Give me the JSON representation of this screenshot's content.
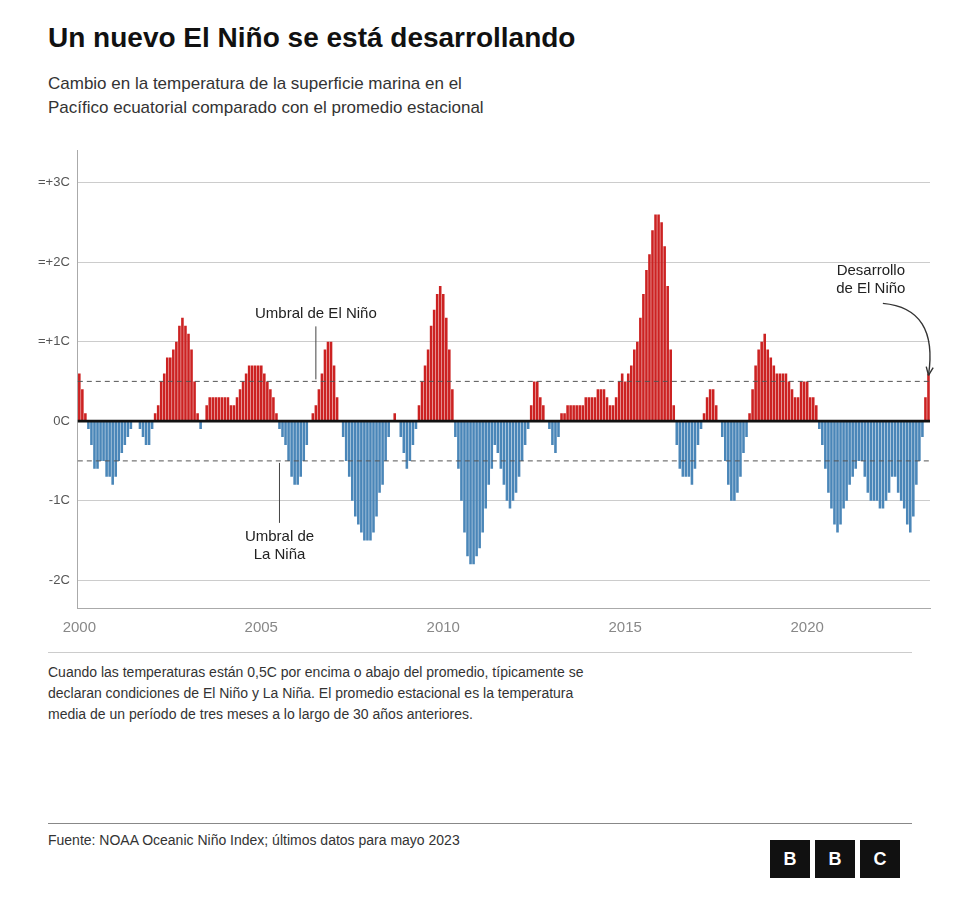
{
  "chart_data": {
    "type": "bar",
    "title": "Un nuevo El Niño se está desarrollando",
    "subtitle": "Cambio en la temperatura de la superficie marina en el\nPacífico ecuatorial comparado con el promedio estacional",
    "footnote": "Cuando las temperaturas están 0,5C por encima o abajo del promedio, típicamente se\ndeclaran condiciones de El Niño y La Niña. El promedio estacional es la temperatura\nmedia de un período de tres meses a lo largo de 30 años anteriores.",
    "source": "Fuente: NOAA Oceanic Niño Index; últimos datos para mayo 2023",
    "logo": "BBC",
    "annotations": [
      "Umbral de El Niño",
      "Umbral de\nLa Niña",
      "Desarrollo\nde El Niño"
    ],
    "reference_lines": [
      0.5,
      -0.5
    ],
    "ylim": [
      -2.35,
      3.4
    ],
    "yticks": [
      {
        "value": -2,
        "label": "-2C"
      },
      {
        "value": -1,
        "label": "-1C"
      },
      {
        "value": 0,
        "label": "0C"
      },
      {
        "value": 1,
        "label": "=+1C"
      },
      {
        "value": 2,
        "label": "=+2C"
      },
      {
        "value": 3,
        "label": "=+3C"
      }
    ],
    "grid": true,
    "categories": [
      "2000",
      null,
      null,
      null,
      null,
      null,
      null,
      null,
      null,
      null,
      null,
      null,
      null,
      null,
      null,
      null,
      null,
      null,
      null,
      null,
      null,
      null,
      null,
      null,
      null,
      null,
      null,
      null,
      null,
      null,
      null,
      null,
      null,
      null,
      null,
      null,
      null,
      null,
      null,
      null,
      null,
      null,
      null,
      null,
      null,
      null,
      null,
      null,
      null,
      null,
      null,
      null,
      null,
      null,
      null,
      null,
      null,
      null,
      null,
      null,
      "2005",
      null,
      null,
      null,
      null,
      null,
      null,
      null,
      null,
      null,
      null,
      null,
      null,
      null,
      null,
      null,
      null,
      null,
      null,
      null,
      null,
      null,
      null,
      null,
      null,
      null,
      null,
      null,
      null,
      null,
      null,
      null,
      null,
      null,
      null,
      null,
      null,
      null,
      null,
      null,
      null,
      null,
      null,
      null,
      null,
      null,
      null,
      null,
      null,
      null,
      null,
      null,
      null,
      null,
      null,
      null,
      null,
      null,
      null,
      null,
      "2010",
      null,
      null,
      null,
      null,
      null,
      null,
      null,
      null,
      null,
      null,
      null,
      null,
      null,
      null,
      null,
      null,
      null,
      null,
      null,
      null,
      null,
      null,
      null,
      null,
      null,
      null,
      null,
      null,
      null,
      null,
      null,
      null,
      null,
      null,
      null,
      null,
      null,
      null,
      null,
      null,
      null,
      null,
      null,
      null,
      null,
      null,
      null,
      null,
      null,
      null,
      null,
      null,
      null,
      null,
      null,
      null,
      null,
      null,
      null,
      "2015",
      null,
      null,
      null,
      null,
      null,
      null,
      null,
      null,
      null,
      null,
      null,
      null,
      null,
      null,
      null,
      null,
      null,
      null,
      null,
      null,
      null,
      null,
      null,
      null,
      null,
      null,
      null,
      null,
      null,
      null,
      null,
      null,
      null,
      null,
      null,
      null,
      null,
      null,
      null,
      null,
      null,
      null,
      null,
      null,
      null,
      null,
      null,
      null,
      null,
      null,
      null,
      null,
      null,
      null,
      null,
      null,
      null,
      null,
      null,
      "2020",
      null,
      null,
      null,
      null,
      null,
      null,
      null,
      null,
      null,
      null,
      null,
      null,
      null,
      null,
      null,
      null,
      null,
      null,
      null,
      null,
      null,
      null,
      null,
      null,
      null,
      null,
      null,
      null,
      null,
      null,
      null,
      null,
      null,
      null,
      null,
      null,
      null,
      null,
      null,
      null
    ],
    "values": [
      0.6,
      0.4,
      0.1,
      -0.1,
      -0.3,
      -0.6,
      -0.6,
      -0.5,
      -0.5,
      -0.7,
      -0.7,
      -0.8,
      -0.7,
      -0.5,
      -0.4,
      -0.3,
      -0.2,
      -0.1,
      0.0,
      0.0,
      -0.1,
      -0.2,
      -0.3,
      -0.3,
      -0.1,
      0.1,
      0.2,
      0.5,
      0.6,
      0.8,
      0.8,
      0.9,
      1.0,
      1.2,
      1.3,
      1.2,
      1.1,
      0.9,
      0.5,
      0.1,
      -0.1,
      0.0,
      0.2,
      0.3,
      0.3,
      0.3,
      0.3,
      0.3,
      0.3,
      0.3,
      0.2,
      0.2,
      0.3,
      0.4,
      0.5,
      0.6,
      0.7,
      0.7,
      0.7,
      0.7,
      0.7,
      0.6,
      0.5,
      0.4,
      0.3,
      0.1,
      -0.1,
      -0.2,
      -0.3,
      -0.5,
      -0.7,
      -0.8,
      -0.8,
      -0.7,
      -0.5,
      -0.3,
      0.0,
      0.1,
      0.2,
      0.4,
      0.6,
      0.9,
      1.0,
      1.0,
      0.7,
      0.3,
      0.0,
      -0.2,
      -0.5,
      -0.7,
      -1.0,
      -1.2,
      -1.3,
      -1.4,
      -1.5,
      -1.5,
      -1.5,
      -1.4,
      -1.2,
      -0.9,
      -0.8,
      -0.5,
      -0.2,
      0.0,
      0.1,
      0.0,
      -0.2,
      -0.4,
      -0.6,
      -0.5,
      -0.3,
      -0.1,
      0.2,
      0.5,
      0.7,
      0.9,
      1.2,
      1.4,
      1.6,
      1.7,
      1.6,
      1.3,
      0.9,
      0.4,
      -0.2,
      -0.6,
      -1.0,
      -1.4,
      -1.7,
      -1.8,
      -1.8,
      -1.7,
      -1.6,
      -1.4,
      -1.1,
      -0.8,
      -0.6,
      -0.3,
      -0.4,
      -0.6,
      -0.8,
      -1.0,
      -1.1,
      -1.0,
      -0.9,
      -0.7,
      -0.5,
      -0.3,
      -0.1,
      0.2,
      0.5,
      0.5,
      0.3,
      0.2,
      0.0,
      -0.1,
      -0.3,
      -0.4,
      -0.2,
      0.1,
      0.1,
      0.2,
      0.2,
      0.2,
      0.2,
      0.2,
      0.2,
      0.3,
      0.3,
      0.3,
      0.3,
      0.4,
      0.4,
      0.4,
      0.3,
      0.2,
      0.2,
      0.3,
      0.5,
      0.6,
      0.5,
      0.6,
      0.7,
      0.9,
      1.0,
      1.3,
      1.6,
      1.9,
      2.1,
      2.4,
      2.6,
      2.6,
      2.5,
      2.2,
      1.7,
      0.9,
      0.2,
      -0.3,
      -0.6,
      -0.7,
      -0.7,
      -0.7,
      -0.8,
      -0.6,
      -0.3,
      -0.1,
      0.1,
      0.3,
      0.4,
      0.4,
      0.2,
      0.0,
      -0.2,
      -0.5,
      -0.8,
      -1.0,
      -1.0,
      -0.9,
      -0.7,
      -0.4,
      -0.2,
      0.1,
      0.4,
      0.7,
      0.9,
      1.0,
      1.1,
      0.9,
      0.8,
      0.7,
      0.6,
      0.6,
      0.6,
      0.6,
      0.5,
      0.4,
      0.3,
      0.3,
      0.5,
      0.5,
      0.5,
      0.3,
      0.3,
      0.2,
      -0.1,
      -0.3,
      -0.6,
      -0.9,
      -1.1,
      -1.3,
      -1.4,
      -1.3,
      -1.1,
      -1.0,
      -0.8,
      -0.7,
      -0.6,
      -0.5,
      -0.5,
      -0.7,
      -0.9,
      -1.0,
      -1.0,
      -1.0,
      -1.1,
      -1.1,
      -1.0,
      -0.9,
      -0.7,
      -0.7,
      -0.9,
      -1.0,
      -1.1,
      -1.3,
      -1.4,
      -1.2,
      -0.8,
      -0.5,
      -0.2,
      0.3,
      0.6
    ],
    "colors": [
      "#cc2222",
      "#cc2222",
      "#cc2222",
      "#4a86b8",
      "#4a86b8",
      "#4a86b8",
      "#4a86b8",
      "#4a86b8",
      "#4a86b8",
      "#4a86b8",
      "#4a86b8",
      "#4a86b8",
      "#4a86b8",
      "#4a86b8",
      "#4a86b8",
      "#4a86b8",
      "#4a86b8",
      "#4a86b8",
      "#cc2222",
      "#cc2222",
      "#4a86b8",
      "#4a86b8",
      "#4a86b8",
      "#4a86b8",
      "#4a86b8",
      "#cc2222",
      "#cc2222",
      "#cc2222",
      "#cc2222",
      "#cc2222",
      "#cc2222",
      "#cc2222",
      "#cc2222",
      "#cc2222",
      "#cc2222",
      "#cc2222",
      "#cc2222",
      "#cc2222",
      "#cc2222",
      "#cc2222",
      "#4a86b8",
      "#cc2222",
      "#cc2222",
      "#cc2222",
      "#cc2222",
      "#cc2222",
      "#cc2222",
      "#cc2222",
      "#cc2222",
      "#cc2222",
      "#cc2222",
      "#cc2222",
      "#cc2222",
      "#cc2222",
      "#cc2222",
      "#cc2222",
      "#cc2222",
      "#cc2222",
      "#cc2222",
      "#cc2222",
      "#cc2222",
      "#cc2222",
      "#cc2222",
      "#cc2222",
      "#cc2222",
      "#cc2222",
      "#4a86b8",
      "#4a86b8",
      "#4a86b8",
      "#4a86b8",
      "#4a86b8",
      "#4a86b8",
      "#4a86b8",
      "#4a86b8",
      "#4a86b8",
      "#4a86b8",
      "#cc2222",
      "#cc2222",
      "#cc2222",
      "#cc2222",
      "#cc2222",
      "#cc2222",
      "#cc2222",
      "#cc2222",
      "#cc2222",
      "#cc2222",
      "#cc2222",
      "#4a86b8",
      "#4a86b8",
      "#4a86b8",
      "#4a86b8",
      "#4a86b8",
      "#4a86b8",
      "#4a86b8",
      "#4a86b8",
      "#4a86b8",
      "#4a86b8",
      "#4a86b8",
      "#4a86b8",
      "#4a86b8",
      "#4a86b8",
      "#4a86b8",
      "#4a86b8",
      "#cc2222",
      "#cc2222",
      "#cc2222",
      "#4a86b8",
      "#4a86b8",
      "#4a86b8",
      "#4a86b8",
      "#4a86b8",
      "#4a86b8",
      "#cc2222",
      "#cc2222",
      "#cc2222",
      "#cc2222",
      "#cc2222",
      "#cc2222",
      "#cc2222",
      "#cc2222",
      "#cc2222",
      "#cc2222",
      "#cc2222",
      "#cc2222",
      "#4a86b8",
      "#4a86b8",
      "#4a86b8",
      "#4a86b8",
      "#4a86b8",
      "#4a86b8",
      "#4a86b8",
      "#4a86b8",
      "#4a86b8",
      "#4a86b8",
      "#4a86b8",
      "#4a86b8",
      "#4a86b8",
      "#4a86b8",
      "#4a86b8",
      "#4a86b8",
      "#4a86b8",
      "#4a86b8",
      "#4a86b8",
      "#4a86b8",
      "#4a86b8",
      "#4a86b8",
      "#4a86b8",
      "#4a86b8",
      "#4a86b8",
      "#cc2222",
      "#cc2222",
      "#cc2222",
      "#cc2222",
      "#cc2222",
      "#cc2222",
      "#4a86b8",
      "#4a86b8",
      "#4a86b8",
      "#4a86b8",
      "#cc2222",
      "#cc2222",
      "#cc2222",
      "#cc2222",
      "#cc2222",
      "#cc2222",
      "#cc2222",
      "#cc2222",
      "#cc2222",
      "#cc2222",
      "#cc2222",
      "#cc2222",
      "#cc2222",
      "#cc2222",
      "#cc2222",
      "#cc2222",
      "#cc2222",
      "#cc2222",
      "#cc2222",
      "#cc2222",
      "#cc2222",
      "#cc2222",
      "#cc2222",
      "#cc2222",
      "#cc2222",
      "#cc2222",
      "#cc2222",
      "#cc2222",
      "#cc2222",
      "#cc2222",
      "#cc2222",
      "#cc2222",
      "#cc2222",
      "#cc2222",
      "#cc2222",
      "#cc2222",
      "#cc2222",
      "#cc2222",
      "#4a86b8",
      "#4a86b8",
      "#4a86b8",
      "#4a86b8",
      "#4a86b8",
      "#4a86b8",
      "#4a86b8",
      "#4a86b8",
      "#4a86b8",
      "#cc2222",
      "#cc2222",
      "#cc2222",
      "#cc2222",
      "#cc2222",
      "#cc2222",
      "#4a86b8",
      "#4a86b8",
      "#4a86b8",
      "#4a86b8",
      "#4a86b8",
      "#4a86b8",
      "#4a86b8",
      "#4a86b8",
      "#4a86b8",
      "#cc2222",
      "#cc2222",
      "#cc2222",
      "#cc2222",
      "#cc2222",
      "#cc2222",
      "#cc2222",
      "#cc2222",
      "#cc2222",
      "#cc2222",
      "#cc2222",
      "#cc2222",
      "#cc2222",
      "#cc2222",
      "#cc2222",
      "#cc2222",
      "#cc2222",
      "#cc2222",
      "#cc2222",
      "#cc2222",
      "#cc2222",
      "#cc2222",
      "#cc2222",
      "#4a86b8",
      "#4a86b8",
      "#4a86b8",
      "#4a86b8",
      "#4a86b8",
      "#4a86b8",
      "#4a86b8",
      "#4a86b8",
      "#4a86b8",
      "#4a86b8",
      "#4a86b8",
      "#4a86b8",
      "#4a86b8",
      "#4a86b8",
      "#4a86b8",
      "#4a86b8",
      "#4a86b8",
      "#4a86b8",
      "#4a86b8",
      "#4a86b8",
      "#4a86b8",
      "#4a86b8",
      "#4a86b8",
      "#4a86b8",
      "#4a86b8",
      "#4a86b8",
      "#4a86b8",
      "#4a86b8",
      "#4a86b8",
      "#4a86b8",
      "#4a86b8",
      "#4a86b8",
      "#4a86b8",
      "#4a86b8",
      "#4a86b8",
      "#cc2222",
      "#cc2222"
    ]
  }
}
